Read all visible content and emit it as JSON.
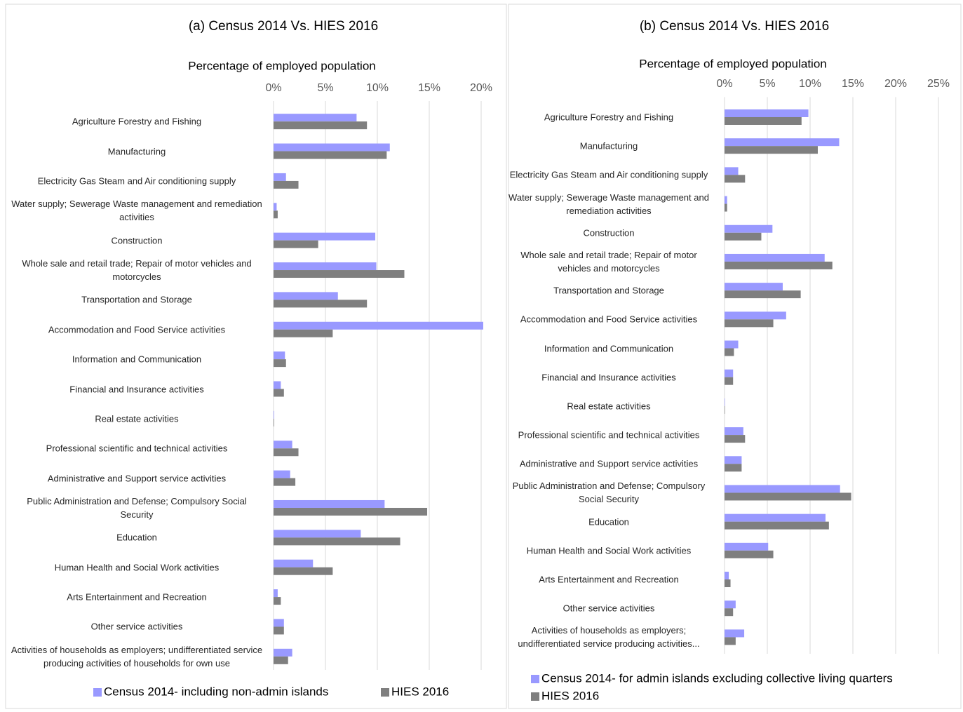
{
  "chart_data": [
    {
      "type": "bar",
      "orientation": "horizontal",
      "title": "(a) Census 2014 Vs. HIES 2016",
      "x_label": "Percentage of employed population",
      "categories": [
        "Agriculture Forestry and Fishing",
        "Manufacturing",
        "Electricity Gas Steam and Air conditioning supply",
        "Water supply; Sewerage Waste management and remediation activities",
        "Construction",
        "Whole sale and retail trade; Repair of motor vehicles and motorcycles",
        "Transportation and Storage",
        "Accommodation and Food Service activities",
        "Information and Communication",
        "Financial and Insurance activities",
        "Real estate activities",
        "Professional scientific  and technical activities",
        "Administrative and Support service activities",
        "Public Administration and Defense; Compulsory Social Security",
        "Education",
        "Human Health and Social Work activities",
        "Arts Entertainment and Recreation",
        "Other service activities",
        "Activities of households as employers; undifferentiated service producing activities of households for own use"
      ],
      "series": [
        {
          "name": "Census 2014- including non-admin islands",
          "color": "#9999ff",
          "values": [
            8.0,
            11.2,
            1.2,
            0.3,
            9.8,
            9.9,
            6.2,
            20.2,
            1.1,
            0.7,
            0.05,
            1.8,
            1.6,
            10.7,
            8.4,
            3.8,
            0.4,
            1.0,
            1.8
          ]
        },
        {
          "name": "HIES 2016",
          "color": "#7f7f7f",
          "values": [
            9.0,
            10.9,
            2.4,
            0.4,
            4.3,
            12.6,
            9.0,
            5.7,
            1.2,
            1.0,
            0.05,
            2.4,
            2.1,
            14.8,
            12.2,
            5.7,
            0.7,
            1.0,
            1.4
          ]
        }
      ],
      "xlim": [
        0,
        20
      ],
      "xticks": [
        {
          "value": 0,
          "label": "0%"
        },
        {
          "value": 5,
          "label": "5%"
        },
        {
          "value": 10,
          "label": "10%"
        },
        {
          "value": 15,
          "label": "15%"
        },
        {
          "value": 20,
          "label": "20%"
        }
      ],
      "grid": true,
      "legend": "bottom"
    },
    {
      "type": "bar",
      "orientation": "horizontal",
      "title": "(b) Census 2014 Vs. HIES 2016",
      "x_label": "Percentage of employed population",
      "categories": [
        "Agriculture Forestry and Fishing",
        "Manufacturing",
        "Electricity Gas Steam and Air conditioning supply",
        "Water supply; Sewerage Waste management and remediation activities",
        "Construction",
        "Whole sale and retail trade; Repair of motor vehicles and motorcycles",
        "Transportation and Storage",
        "Accommodation and Food Service activities",
        "Information and Communication",
        "Financial and Insurance activities",
        "Real estate activities",
        "Professional scientific  and technical activities",
        "Administrative and Support service activities",
        "Public Administration and Defense; Compulsory Social Security",
        "Education",
        "Human Health and Social Work activities",
        "Arts Entertainment and Recreation",
        "Other service activities",
        "Activities of households as employers; undifferentiated service producing activities..."
      ],
      "series": [
        {
          "name": "Census 2014- for admin islands excluding collective living quarters",
          "color": "#9999ff",
          "values": [
            9.8,
            13.4,
            1.6,
            0.3,
            5.6,
            11.7,
            6.8,
            7.2,
            1.6,
            1.0,
            0.05,
            2.2,
            2.0,
            13.5,
            11.8,
            5.1,
            0.5,
            1.3,
            2.3
          ]
        },
        {
          "name": "HIES 2016",
          "color": "#7f7f7f",
          "values": [
            9.0,
            10.9,
            2.4,
            0.3,
            4.3,
            12.6,
            8.9,
            5.7,
            1.1,
            1.0,
            0.05,
            2.4,
            2.0,
            14.8,
            12.2,
            5.7,
            0.7,
            1.0,
            1.3
          ]
        }
      ],
      "xlim": [
        0,
        25
      ],
      "xticks": [
        {
          "value": 0,
          "label": "0%"
        },
        {
          "value": 5,
          "label": "5%"
        },
        {
          "value": 10,
          "label": "10%"
        },
        {
          "value": 15,
          "label": "15%"
        },
        {
          "value": 20,
          "label": "20%"
        },
        {
          "value": 25,
          "label": "25%"
        }
      ],
      "grid": true,
      "legend": "bottom"
    }
  ]
}
